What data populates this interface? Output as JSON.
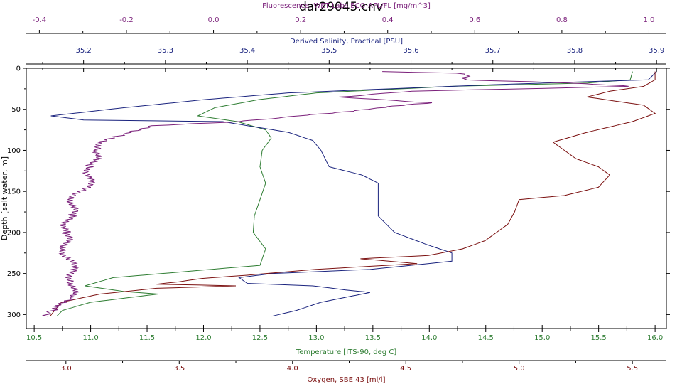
{
  "chart_data": {
    "type": "line",
    "title": "dar29045.cnv",
    "y_axis": {
      "label": "Depth [salt water, m]",
      "lim": [
        0,
        317
      ],
      "inverted": true,
      "ticks": [
        0,
        50,
        100,
        150,
        200,
        250,
        300
      ]
    },
    "x_axes": [
      {
        "id": "fl",
        "position": "top",
        "row": 1,
        "label": "Fluorescence, WET Labs ECO-AFL/FL [mg/m^3]",
        "color": "#7a1f7a",
        "lim": [
          -0.43,
          1.04
        ],
        "ticks": [
          -0.4,
          -0.2,
          0.0,
          0.2,
          0.4,
          0.6,
          0.8,
          1.0
        ],
        "tick_labels": [
          "-0.4",
          "-0.2",
          "0.0",
          "0.2",
          "0.4",
          "0.6",
          "0.8",
          "1.0"
        ]
      },
      {
        "id": "sal",
        "position": "top",
        "row": 2,
        "label": "Derived Salinity, Practical [PSU]",
        "color": "#1a237e",
        "lim": [
          35.13,
          35.912
        ],
        "ticks": [
          35.2,
          35.3,
          35.4,
          35.5,
          35.6,
          35.7,
          35.8,
          35.9
        ],
        "tick_labels": [
          "35.2",
          "35.3",
          "35.4",
          "35.5",
          "35.6",
          "35.7",
          "35.8",
          "35.9"
        ]
      },
      {
        "id": "temp",
        "position": "bottom",
        "row": 1,
        "label": "Temperature [ITS-90, deg C]",
        "color": "#2e7d32",
        "lim": [
          10.43,
          16.1
        ],
        "ticks": [
          10.5,
          11.0,
          11.5,
          12.0,
          12.5,
          13.0,
          13.5,
          14.0,
          14.5,
          15.0,
          15.5,
          16.0
        ],
        "tick_labels": [
          "10.5",
          "11.0",
          "11.5",
          "12.0",
          "12.5",
          "13.0",
          "13.5",
          "14.0",
          "14.5",
          "15.0",
          "15.5",
          "16.0"
        ]
      },
      {
        "id": "oxy",
        "position": "bottom",
        "row": 2,
        "label": "Oxygen, SBE 43 [ml/l]",
        "color": "#7b1010",
        "lim": [
          2.825,
          5.65
        ],
        "ticks": [
          3.0,
          3.5,
          4.0,
          4.5,
          5.0,
          5.5
        ],
        "tick_labels": [
          "3.0",
          "3.5",
          "4.0",
          "4.5",
          "5.0",
          "5.5"
        ]
      }
    ],
    "series": [
      {
        "axis": "temp",
        "color": "#2e7d32",
        "jitter": 0,
        "points": [
          [
            15.8,
            4
          ],
          [
            15.78,
            14
          ],
          [
            15.4,
            18
          ],
          [
            14.2,
            22
          ],
          [
            13.0,
            30
          ],
          [
            12.5,
            38
          ],
          [
            12.1,
            48
          ],
          [
            11.95,
            58
          ],
          [
            12.3,
            65
          ],
          [
            12.55,
            75
          ],
          [
            12.6,
            85
          ],
          [
            12.52,
            100
          ],
          [
            12.5,
            120
          ],
          [
            12.55,
            140
          ],
          [
            12.5,
            160
          ],
          [
            12.45,
            180
          ],
          [
            12.44,
            200
          ],
          [
            12.55,
            220
          ],
          [
            12.5,
            240
          ],
          [
            11.2,
            255
          ],
          [
            10.95,
            265
          ],
          [
            11.3,
            272
          ],
          [
            11.6,
            275
          ],
          [
            11.0,
            285
          ],
          [
            10.75,
            295
          ],
          [
            10.7,
            302
          ]
        ]
      },
      {
        "axis": "sal",
        "color": "#1a237e",
        "jitter": 0,
        "points": [
          [
            35.9,
            4
          ],
          [
            35.89,
            14
          ],
          [
            35.7,
            20
          ],
          [
            35.45,
            30
          ],
          [
            35.35,
            38
          ],
          [
            35.25,
            48
          ],
          [
            35.16,
            58
          ],
          [
            35.2,
            63
          ],
          [
            35.37,
            65
          ],
          [
            35.45,
            78
          ],
          [
            35.48,
            88
          ],
          [
            35.49,
            100
          ],
          [
            35.5,
            120
          ],
          [
            35.54,
            130
          ],
          [
            35.56,
            140
          ],
          [
            35.56,
            160
          ],
          [
            35.56,
            180
          ],
          [
            35.58,
            200
          ],
          [
            35.62,
            215
          ],
          [
            35.65,
            225
          ],
          [
            35.65,
            235
          ],
          [
            35.55,
            245
          ],
          [
            35.43,
            250
          ],
          [
            35.39,
            255
          ],
          [
            35.4,
            262
          ],
          [
            35.48,
            265
          ],
          [
            35.52,
            270
          ],
          [
            35.55,
            273
          ],
          [
            35.49,
            285
          ],
          [
            35.46,
            295
          ],
          [
            35.43,
            302
          ]
        ]
      },
      {
        "axis": "oxy",
        "color": "#7b1010",
        "jitter": 0,
        "points": [
          [
            5.6,
            4
          ],
          [
            5.6,
            14
          ],
          [
            5.55,
            22
          ],
          [
            5.4,
            28
          ],
          [
            5.3,
            35
          ],
          [
            5.55,
            45
          ],
          [
            5.6,
            55
          ],
          [
            5.5,
            65
          ],
          [
            5.3,
            78
          ],
          [
            5.15,
            90
          ],
          [
            5.2,
            100
          ],
          [
            5.25,
            110
          ],
          [
            5.35,
            120
          ],
          [
            5.4,
            130
          ],
          [
            5.35,
            145
          ],
          [
            5.2,
            155
          ],
          [
            5.0,
            160
          ],
          [
            4.98,
            175
          ],
          [
            4.95,
            190
          ],
          [
            4.85,
            210
          ],
          [
            4.75,
            220
          ],
          [
            4.6,
            228
          ],
          [
            4.3,
            232
          ],
          [
            4.55,
            238
          ],
          [
            4.1,
            245
          ],
          [
            3.8,
            252
          ],
          [
            3.6,
            256
          ],
          [
            3.5,
            260
          ],
          [
            3.4,
            263
          ],
          [
            3.75,
            265
          ],
          [
            3.4,
            268
          ],
          [
            3.15,
            275
          ],
          [
            2.98,
            285
          ],
          [
            2.95,
            295
          ],
          [
            2.93,
            302
          ]
        ]
      },
      {
        "axis": "fl",
        "color": "#7a1f7a",
        "jitter": 0.012,
        "points": [
          [
            0.39,
            4
          ],
          [
            0.55,
            6
          ],
          [
            0.59,
            8
          ],
          [
            0.58,
            14
          ],
          [
            0.82,
            18
          ],
          [
            0.95,
            22
          ],
          [
            0.45,
            28
          ],
          [
            0.3,
            35
          ],
          [
            0.5,
            42
          ],
          [
            0.35,
            50
          ],
          [
            0.2,
            58
          ],
          [
            0.05,
            65
          ],
          [
            -0.15,
            70
          ],
          [
            -0.2,
            80
          ],
          [
            -0.25,
            90
          ],
          [
            -0.27,
            100
          ],
          [
            -0.28,
            120
          ],
          [
            -0.29,
            140
          ],
          [
            -0.32,
            160
          ],
          [
            -0.33,
            180
          ],
          [
            -0.34,
            200
          ],
          [
            -0.34,
            220
          ],
          [
            -0.33,
            240
          ],
          [
            -0.32,
            260
          ],
          [
            -0.33,
            280
          ],
          [
            -0.36,
            295
          ],
          [
            -0.38,
            302
          ]
        ]
      }
    ],
    "grid": false,
    "legend": "none"
  }
}
